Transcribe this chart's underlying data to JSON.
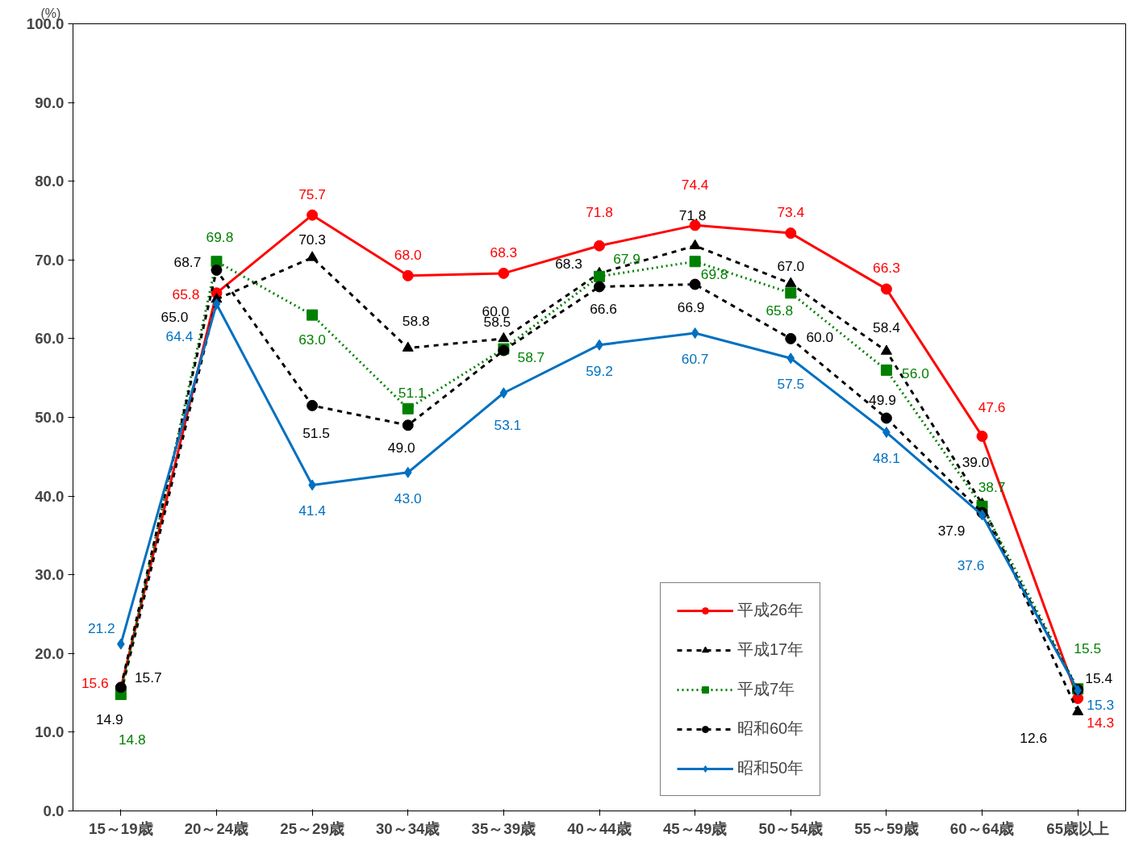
{
  "chart_data": {
    "type": "line",
    "ylabel": "(%)",
    "categories": [
      "15～19歳",
      "20～24歳",
      "25～29歳",
      "30～34歳",
      "35～39歳",
      "40～44歳",
      "45～49歳",
      "50～54歳",
      "55～59歳",
      "60～64歳",
      "65歳以上"
    ],
    "series": [
      {
        "name": "平成26年",
        "color": "#ff0000",
        "marker": "circle",
        "line_style": "solid",
        "values": [
          15.6,
          65.8,
          75.7,
          68.0,
          68.3,
          71.8,
          74.4,
          73.4,
          66.3,
          47.6,
          14.3
        ],
        "value_labels": [
          "15.6",
          "65.8",
          "75.7",
          "68.0",
          "68.3",
          "71.8",
          "74.4",
          "73.4",
          "66.3",
          "47.6",
          "14.3"
        ]
      },
      {
        "name": "平成17年",
        "color": "#000000",
        "marker": "triangle",
        "line_style": "dashed",
        "values": [
          14.9,
          65.0,
          70.3,
          58.8,
          60.0,
          68.3,
          71.8,
          67.0,
          58.4,
          39.0,
          12.6
        ],
        "value_labels": [
          "14.9",
          "65.0",
          "70.3",
          "58.8",
          "60.0",
          "68.3",
          "71.8",
          "67.0",
          "58.4",
          "39.0",
          "12.6"
        ]
      },
      {
        "name": "平成7年",
        "color": "#008000",
        "marker": "square",
        "line_style": "dotted",
        "values": [
          14.8,
          69.8,
          63.0,
          51.1,
          58.7,
          67.9,
          69.8,
          65.8,
          56.0,
          38.7,
          15.5
        ],
        "value_labels": [
          "14.8",
          "69.8",
          "63.0",
          "51.1",
          "58.7",
          "67.9",
          "69.8",
          "65.8",
          "56.0",
          "38.7",
          "15.5"
        ]
      },
      {
        "name": "昭和60年",
        "color": "#000000",
        "marker": "circle",
        "line_style": "dashed",
        "values": [
          15.7,
          68.7,
          51.5,
          49.0,
          58.5,
          66.6,
          66.9,
          60.0,
          49.9,
          37.9,
          15.4
        ],
        "value_labels": [
          "15.7",
          "68.7",
          "51.5",
          "49.0",
          "58.5",
          "66.6",
          "66.9",
          "60.0",
          "49.9",
          "37.9",
          "15.4"
        ]
      },
      {
        "name": "昭和50年",
        "color": "#0070c0",
        "marker": "diamond",
        "line_style": "solid",
        "values": [
          21.2,
          64.4,
          41.4,
          43.0,
          53.1,
          59.2,
          60.7,
          57.5,
          48.1,
          37.6,
          15.3
        ],
        "value_labels": [
          "21.2",
          "64.4",
          "41.4",
          "43.0",
          "53.1",
          "59.2",
          "60.7",
          "57.5",
          "48.1",
          "37.6",
          "15.3"
        ]
      }
    ],
    "ylim": [
      0,
      100
    ],
    "yticks": [
      {
        "value": 0,
        "label": "0.0"
      },
      {
        "value": 10,
        "label": "10.0"
      },
      {
        "value": 20,
        "label": "20.0"
      },
      {
        "value": 30,
        "label": "30.0"
      },
      {
        "value": 40,
        "label": "40.0"
      },
      {
        "value": 50,
        "label": "50.0"
      },
      {
        "value": 60,
        "label": "60.0"
      },
      {
        "value": 70,
        "label": "70.0"
      },
      {
        "value": 80,
        "label": "80.0"
      },
      {
        "value": 90,
        "label": "90.0"
      },
      {
        "value": 100,
        "label": "100.0"
      }
    ],
    "grid": false,
    "legend": "bottom right"
  }
}
